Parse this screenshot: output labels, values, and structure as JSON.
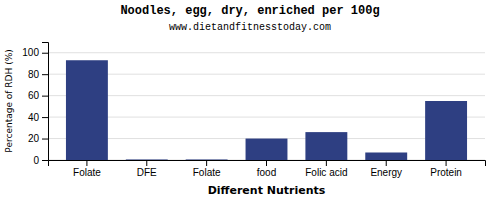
{
  "chart_data": {
    "type": "bar",
    "title": "Noodles, egg, dry, enriched per 100g",
    "subtitle": "www.dietandfitnesstoday.com",
    "xlabel": "Different Nutrients",
    "ylabel": "Percentage of RDH (%)",
    "categories": [
      "Folate",
      "DFE",
      "Folate",
      "food",
      "Folic acid",
      "Energy",
      "Protein"
    ],
    "values": [
      93,
      0.5,
      0.5,
      20,
      26,
      7,
      55
    ],
    "color": "#2e3f82",
    "ylim": [
      0,
      110
    ],
    "yticks": [
      0,
      20,
      40,
      60,
      80,
      100
    ],
    "grid": true
  }
}
